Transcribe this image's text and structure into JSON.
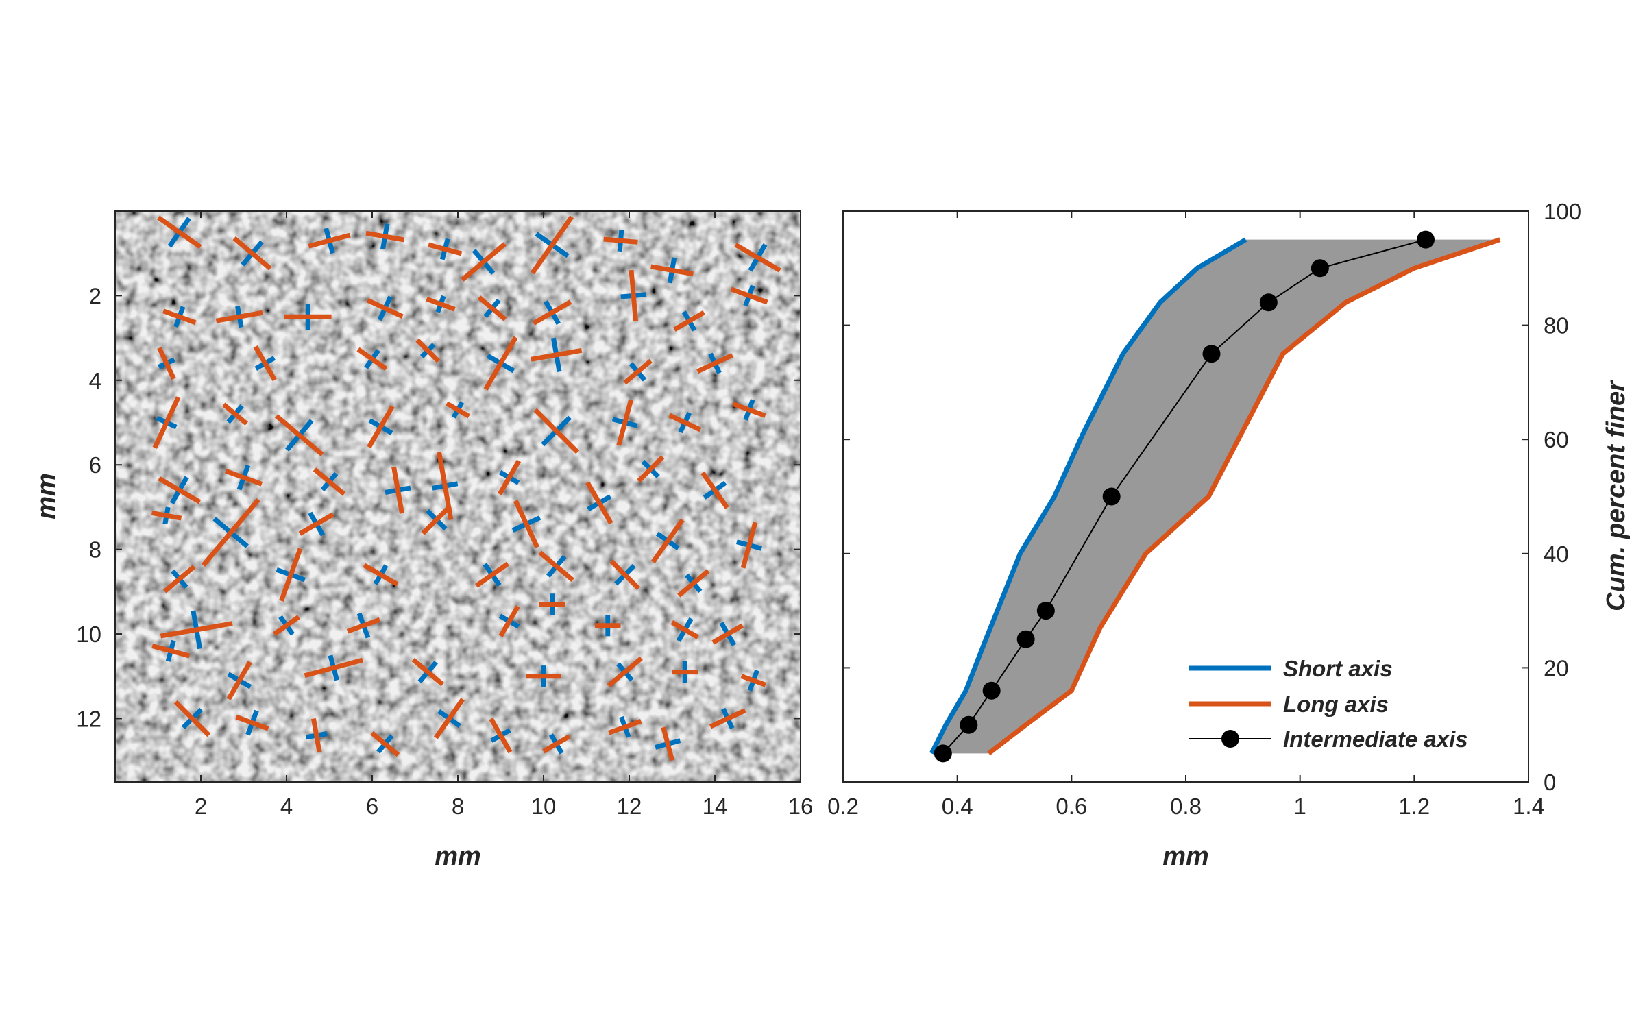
{
  "colors": {
    "short_axis": "#0072BD",
    "long_axis": "#D95319",
    "intermediate_axis": "#000000",
    "band_fill": "#999999",
    "axes": "#262626"
  },
  "chart_data": [
    {
      "type": "image",
      "xlabel": "mm",
      "ylabel": "mm",
      "xlim": [
        0,
        16
      ],
      "ylim": [
        13.5,
        0
      ],
      "x_ticks": [
        "2",
        "4",
        "6",
        "8",
        "10",
        "12",
        "14",
        "16"
      ],
      "y_ticks": [
        "2",
        "4",
        "6",
        "8",
        "10",
        "12"
      ],
      "grain_overlay": [
        {
          "x": 1.5,
          "y": 0.5,
          "short_len": 0.8,
          "long_len": 1.2,
          "angle": 35
        },
        {
          "x": 3.2,
          "y": 1.0,
          "short_len": 0.7,
          "long_len": 1.1,
          "angle": 40
        },
        {
          "x": 5.0,
          "y": 0.7,
          "short_len": 0.6,
          "long_len": 1.0,
          "angle": -15
        },
        {
          "x": 6.3,
          "y": 0.6,
          "short_len": 0.6,
          "long_len": 0.9,
          "angle": 10
        },
        {
          "x": 7.7,
          "y": 0.9,
          "short_len": 0.5,
          "long_len": 0.8,
          "angle": 15
        },
        {
          "x": 8.6,
          "y": 1.2,
          "short_len": 0.7,
          "long_len": 1.3,
          "angle": -40
        },
        {
          "x": 10.2,
          "y": 0.8,
          "short_len": 0.9,
          "long_len": 1.6,
          "angle": -55
        },
        {
          "x": 11.8,
          "y": 0.7,
          "short_len": 0.5,
          "long_len": 0.8,
          "angle": 5
        },
        {
          "x": 13.0,
          "y": 1.4,
          "short_len": 0.6,
          "long_len": 1.0,
          "angle": 10
        },
        {
          "x": 15.0,
          "y": 1.1,
          "short_len": 0.7,
          "long_len": 1.2,
          "angle": 30
        },
        {
          "x": 1.5,
          "y": 2.5,
          "short_len": 0.5,
          "long_len": 0.8,
          "angle": 20
        },
        {
          "x": 2.9,
          "y": 2.5,
          "short_len": 0.5,
          "long_len": 1.1,
          "angle": -10
        },
        {
          "x": 4.5,
          "y": 2.5,
          "short_len": 0.6,
          "long_len": 1.1,
          "angle": 0
        },
        {
          "x": 6.3,
          "y": 2.3,
          "short_len": 0.6,
          "long_len": 0.9,
          "angle": 25
        },
        {
          "x": 7.6,
          "y": 2.2,
          "short_len": 0.4,
          "long_len": 0.7,
          "angle": 20
        },
        {
          "x": 8.8,
          "y": 2.3,
          "short_len": 0.5,
          "long_len": 0.8,
          "angle": 40
        },
        {
          "x": 10.2,
          "y": 2.4,
          "short_len": 0.6,
          "long_len": 1.0,
          "angle": -30
        },
        {
          "x": 12.1,
          "y": 2.0,
          "short_len": 0.6,
          "long_len": 1.2,
          "angle": 85
        },
        {
          "x": 13.4,
          "y": 2.6,
          "short_len": 0.5,
          "long_len": 0.8,
          "angle": -30
        },
        {
          "x": 14.8,
          "y": 2.0,
          "short_len": 0.5,
          "long_len": 0.9,
          "angle": 20
        },
        {
          "x": 1.2,
          "y": 3.6,
          "short_len": 0.4,
          "long_len": 0.8,
          "angle": 65
        },
        {
          "x": 3.5,
          "y": 3.6,
          "short_len": 0.5,
          "long_len": 0.9,
          "angle": 60
        },
        {
          "x": 6.0,
          "y": 3.5,
          "short_len": 0.5,
          "long_len": 0.8,
          "angle": 35
        },
        {
          "x": 7.3,
          "y": 3.3,
          "short_len": 0.4,
          "long_len": 0.7,
          "angle": 45
        },
        {
          "x": 9.0,
          "y": 3.6,
          "short_len": 0.7,
          "long_len": 1.4,
          "angle": -60
        },
        {
          "x": 10.3,
          "y": 3.4,
          "short_len": 0.8,
          "long_len": 1.2,
          "angle": -10
        },
        {
          "x": 12.2,
          "y": 3.8,
          "short_len": 0.5,
          "long_len": 0.8,
          "angle": -40
        },
        {
          "x": 14.0,
          "y": 3.6,
          "short_len": 0.5,
          "long_len": 0.9,
          "angle": -25
        },
        {
          "x": 1.2,
          "y": 5.0,
          "short_len": 0.5,
          "long_len": 1.3,
          "angle": -65
        },
        {
          "x": 2.8,
          "y": 4.8,
          "short_len": 0.5,
          "long_len": 0.7,
          "angle": 40
        },
        {
          "x": 4.3,
          "y": 5.3,
          "short_len": 0.9,
          "long_len": 1.4,
          "angle": 40
        },
        {
          "x": 6.2,
          "y": 5.1,
          "short_len": 0.6,
          "long_len": 1.1,
          "angle": -60
        },
        {
          "x": 8.0,
          "y": 4.7,
          "short_len": 0.4,
          "long_len": 0.6,
          "angle": 30
        },
        {
          "x": 10.3,
          "y": 5.2,
          "short_len": 0.9,
          "long_len": 1.4,
          "angle": 45
        },
        {
          "x": 11.9,
          "y": 5.0,
          "short_len": 0.6,
          "long_len": 1.1,
          "angle": -75
        },
        {
          "x": 13.3,
          "y": 5.0,
          "short_len": 0.5,
          "long_len": 0.8,
          "angle": 25
        },
        {
          "x": 14.8,
          "y": 4.7,
          "short_len": 0.5,
          "long_len": 0.8,
          "angle": 20
        },
        {
          "x": 1.5,
          "y": 6.6,
          "short_len": 0.7,
          "long_len": 1.1,
          "angle": 30
        },
        {
          "x": 3.0,
          "y": 6.3,
          "short_len": 0.6,
          "long_len": 0.9,
          "angle": 20
        },
        {
          "x": 5.0,
          "y": 6.4,
          "short_len": 0.5,
          "long_len": 0.9,
          "angle": 40
        },
        {
          "x": 6.6,
          "y": 6.6,
          "short_len": 0.6,
          "long_len": 1.1,
          "angle": 80
        },
        {
          "x": 7.7,
          "y": 6.5,
          "short_len": 0.6,
          "long_len": 1.6,
          "angle": 80
        },
        {
          "x": 9.2,
          "y": 6.3,
          "short_len": 0.5,
          "long_len": 0.9,
          "angle": -60
        },
        {
          "x": 11.3,
          "y": 6.9,
          "short_len": 0.6,
          "long_len": 1.1,
          "angle": 60
        },
        {
          "x": 12.5,
          "y": 6.1,
          "short_len": 0.5,
          "long_len": 0.8,
          "angle": -45
        },
        {
          "x": 14.0,
          "y": 6.6,
          "short_len": 0.6,
          "long_len": 1.0,
          "angle": 55
        },
        {
          "x": 1.2,
          "y": 7.2,
          "short_len": 0.4,
          "long_len": 0.7,
          "angle": 10
        },
        {
          "x": 2.7,
          "y": 7.6,
          "short_len": 1.0,
          "long_len": 2.0,
          "angle": -50
        },
        {
          "x": 4.7,
          "y": 7.4,
          "short_len": 0.6,
          "long_len": 0.9,
          "angle": -30
        },
        {
          "x": 7.5,
          "y": 7.3,
          "short_len": 0.6,
          "long_len": 0.9,
          "angle": -45
        },
        {
          "x": 9.6,
          "y": 7.4,
          "short_len": 0.7,
          "long_len": 1.2,
          "angle": 65
        },
        {
          "x": 12.9,
          "y": 7.8,
          "short_len": 0.6,
          "long_len": 1.2,
          "angle": -55
        },
        {
          "x": 14.8,
          "y": 7.9,
          "short_len": 0.6,
          "long_len": 1.1,
          "angle": -75
        },
        {
          "x": 1.5,
          "y": 8.7,
          "short_len": 0.5,
          "long_len": 0.9,
          "angle": -40
        },
        {
          "x": 4.1,
          "y": 8.6,
          "short_len": 0.7,
          "long_len": 1.3,
          "angle": -70
        },
        {
          "x": 6.2,
          "y": 8.6,
          "short_len": 0.5,
          "long_len": 0.9,
          "angle": 30
        },
        {
          "x": 8.8,
          "y": 8.6,
          "short_len": 0.6,
          "long_len": 0.9,
          "angle": -35
        },
        {
          "x": 10.3,
          "y": 8.4,
          "short_len": 0.6,
          "long_len": 1.0,
          "angle": 40
        },
        {
          "x": 11.9,
          "y": 8.6,
          "short_len": 0.6,
          "long_len": 0.9,
          "angle": 45
        },
        {
          "x": 13.5,
          "y": 8.8,
          "short_len": 0.5,
          "long_len": 0.9,
          "angle": -40
        },
        {
          "x": 1.9,
          "y": 9.9,
          "short_len": 0.9,
          "long_len": 1.7,
          "angle": -10
        },
        {
          "x": 4.0,
          "y": 9.8,
          "short_len": 0.5,
          "long_len": 0.7,
          "angle": -35
        },
        {
          "x": 5.8,
          "y": 9.8,
          "short_len": 0.6,
          "long_len": 0.8,
          "angle": -20
        },
        {
          "x": 9.2,
          "y": 9.7,
          "short_len": 0.5,
          "long_len": 0.8,
          "angle": -60
        },
        {
          "x": 10.2,
          "y": 9.3,
          "short_len": 0.5,
          "long_len": 0.6,
          "angle": 0
        },
        {
          "x": 11.5,
          "y": 9.8,
          "short_len": 0.5,
          "long_len": 0.6,
          "angle": 0
        },
        {
          "x": 13.3,
          "y": 9.9,
          "short_len": 0.6,
          "long_len": 0.7,
          "angle": 30
        },
        {
          "x": 14.3,
          "y": 10.0,
          "short_len": 0.6,
          "long_len": 0.8,
          "angle": -30
        },
        {
          "x": 1.3,
          "y": 10.4,
          "short_len": 0.5,
          "long_len": 0.9,
          "angle": 15
        },
        {
          "x": 2.9,
          "y": 11.1,
          "short_len": 0.6,
          "long_len": 1.0,
          "angle": -60
        },
        {
          "x": 5.1,
          "y": 10.8,
          "short_len": 0.6,
          "long_len": 1.4,
          "angle": -15
        },
        {
          "x": 7.3,
          "y": 10.9,
          "short_len": 0.6,
          "long_len": 0.9,
          "angle": 40
        },
        {
          "x": 10.0,
          "y": 11.0,
          "short_len": 0.5,
          "long_len": 0.8,
          "angle": 0
        },
        {
          "x": 11.9,
          "y": 10.9,
          "short_len": 0.5,
          "long_len": 1.0,
          "angle": -40
        },
        {
          "x": 13.3,
          "y": 10.9,
          "short_len": 0.5,
          "long_len": 0.6,
          "angle": 0
        },
        {
          "x": 14.9,
          "y": 11.1,
          "short_len": 0.5,
          "long_len": 0.6,
          "angle": 20
        },
        {
          "x": 1.8,
          "y": 12.0,
          "short_len": 0.6,
          "long_len": 1.1,
          "angle": 45
        },
        {
          "x": 3.2,
          "y": 12.1,
          "short_len": 0.6,
          "long_len": 0.8,
          "angle": 20
        },
        {
          "x": 4.7,
          "y": 12.4,
          "short_len": 0.5,
          "long_len": 0.8,
          "angle": 80
        },
        {
          "x": 6.3,
          "y": 12.6,
          "short_len": 0.5,
          "long_len": 0.8,
          "angle": 40
        },
        {
          "x": 7.8,
          "y": 12.0,
          "short_len": 0.6,
          "long_len": 1.1,
          "angle": -55
        },
        {
          "x": 9.0,
          "y": 12.4,
          "short_len": 0.5,
          "long_len": 0.9,
          "angle": 60
        },
        {
          "x": 10.3,
          "y": 12.6,
          "short_len": 0.5,
          "long_len": 0.7,
          "angle": -30
        },
        {
          "x": 11.9,
          "y": 12.2,
          "short_len": 0.5,
          "long_len": 0.8,
          "angle": -20
        },
        {
          "x": 12.9,
          "y": 12.6,
          "short_len": 0.6,
          "long_len": 0.8,
          "angle": 75
        },
        {
          "x": 14.3,
          "y": 12.0,
          "short_len": 0.5,
          "long_len": 0.9,
          "angle": -25
        }
      ]
    },
    {
      "type": "line",
      "xlabel": "mm",
      "ylabel": "Cum. percent finer",
      "xlim": [
        0.2,
        1.4
      ],
      "ylim": [
        0,
        100
      ],
      "x_ticks": [
        "0.2",
        "0.4",
        "0.6",
        "0.8",
        "1",
        "1.2",
        "1.4"
      ],
      "y_ticks": [
        "0",
        "20",
        "40",
        "60",
        "80",
        "100"
      ],
      "y_axis_side": "right",
      "grid": false,
      "legend_position": "bottom-right",
      "series": [
        {
          "name": "Short axis",
          "style": "line",
          "x": [
            0.355,
            0.38,
            0.415,
            0.45,
            0.51,
            0.57,
            0.62,
            0.69,
            0.755,
            0.82,
            0.905
          ],
          "y": [
            5,
            10,
            16,
            25,
            40,
            50,
            61,
            75,
            84,
            90,
            95
          ]
        },
        {
          "name": "Long axis",
          "style": "line",
          "x": [
            0.455,
            0.52,
            0.6,
            0.65,
            0.73,
            0.84,
            0.97,
            1.08,
            1.2,
            1.35
          ],
          "y": [
            5,
            10,
            16,
            27,
            40,
            50,
            75,
            84,
            90,
            95
          ]
        },
        {
          "name": "Intermediate axis",
          "style": "line-marker",
          "x": [
            0.375,
            0.42,
            0.46,
            0.52,
            0.555,
            0.67,
            0.845,
            0.945,
            1.035,
            1.22
          ],
          "y": [
            5,
            10,
            16,
            25,
            30,
            50,
            75,
            84,
            90,
            95
          ]
        }
      ]
    }
  ]
}
